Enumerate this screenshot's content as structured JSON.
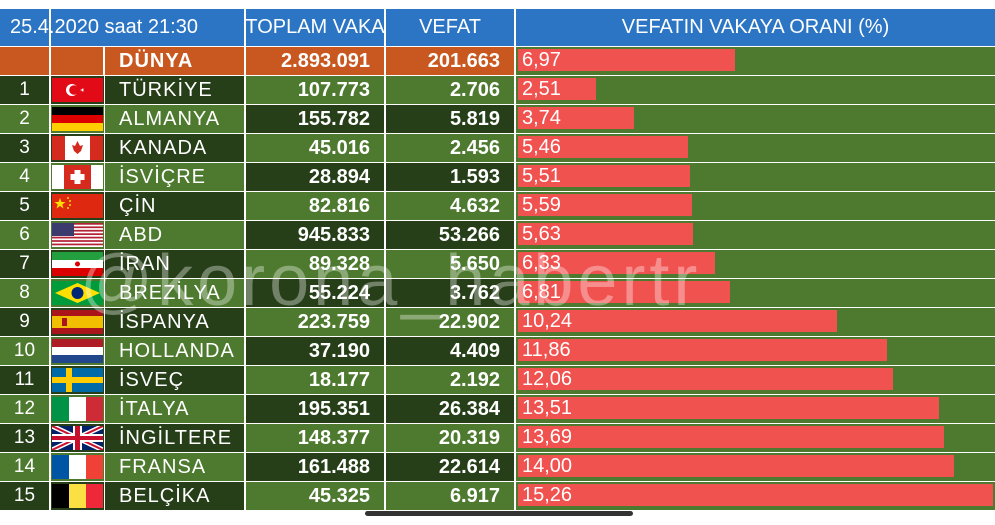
{
  "header": {
    "date_time": "25.4.2020 saat  21:30",
    "col_cases": "TOPLAM VAKA",
    "col_deaths": "VEFAT",
    "col_ratio": "VEFATIN  VAKAYA ORANI (%)"
  },
  "world": {
    "name": "DÜNYA",
    "cases": "2.893.091",
    "deaths": "201.663",
    "ratio": "6,97",
    "ratio_value": 6.97
  },
  "watermark": "@korona_habertr",
  "colors": {
    "header_blue": "#2b75c4",
    "world_orange": "#c8581f",
    "row_dark": "#263f18",
    "row_light": "#4e7a2f",
    "bar_red": "#f0524f"
  },
  "rows": [
    {
      "rank": "1",
      "flag": "turkey-flag-icon",
      "name": "TÜRKİYE",
      "cases": "107.773",
      "deaths": "2.706",
      "ratio": "2,51"
    },
    {
      "rank": "2",
      "flag": "germany-flag-icon",
      "name": "ALMANYA",
      "cases": "155.782",
      "deaths": "5.819",
      "ratio": "3,74"
    },
    {
      "rank": "3",
      "flag": "canada-flag-icon",
      "name": "KANADA",
      "cases": "45.016",
      "deaths": "2.456",
      "ratio": "5,46"
    },
    {
      "rank": "4",
      "flag": "switzerland-flag-icon",
      "name": "İSVİÇRE",
      "cases": "28.894",
      "deaths": "1.593",
      "ratio": "5,51"
    },
    {
      "rank": "5",
      "flag": "china-flag-icon",
      "name": "ÇİN",
      "cases": "82.816",
      "deaths": "4.632",
      "ratio": "5,59"
    },
    {
      "rank": "6",
      "flag": "usa-flag-icon",
      "name": "ABD",
      "cases": "945.833",
      "deaths": "53.266",
      "ratio": "5,63"
    },
    {
      "rank": "7",
      "flag": "iran-flag-icon",
      "name": "İRAN",
      "cases": "89.328",
      "deaths": "5.650",
      "ratio": "6,33"
    },
    {
      "rank": "8",
      "flag": "brazil-flag-icon",
      "name": "BREZİLYA",
      "cases": "55.224",
      "deaths": "3.762",
      "ratio": "6,81"
    },
    {
      "rank": "9",
      "flag": "spain-flag-icon",
      "name": "İSPANYA",
      "cases": "223.759",
      "deaths": "22.902",
      "ratio": "10,24"
    },
    {
      "rank": "10",
      "flag": "netherlands-flag-icon",
      "name": "HOLLANDA",
      "cases": "37.190",
      "deaths": "4.409",
      "ratio": "11,86"
    },
    {
      "rank": "11",
      "flag": "sweden-flag-icon",
      "name": "İSVEÇ",
      "cases": "18.177",
      "deaths": "2.192",
      "ratio": "12,06"
    },
    {
      "rank": "12",
      "flag": "italy-flag-icon",
      "name": "İTALYA",
      "cases": "195.351",
      "deaths": "26.384",
      "ratio": "13,51"
    },
    {
      "rank": "13",
      "flag": "uk-flag-icon",
      "name": "İNGİLTERE",
      "cases": "148.377",
      "deaths": "20.319",
      "ratio": "13,69"
    },
    {
      "rank": "14",
      "flag": "france-flag-icon",
      "name": "FRANSA",
      "cases": "161.488",
      "deaths": "22.614",
      "ratio": "14,00"
    },
    {
      "rank": "15",
      "flag": "belgium-flag-icon",
      "name": "BELÇİKA",
      "cases": "45.325",
      "deaths": "6.917",
      "ratio": "15,26"
    }
  ],
  "chart_data": {
    "type": "bar",
    "title": "VEFATIN  VAKAYA ORANI (%)",
    "categories": [
      "DÜNYA",
      "TÜRKİYE",
      "ALMANYA",
      "KANADA",
      "İSVİÇRE",
      "ÇİN",
      "ABD",
      "İRAN",
      "BREZİLYA",
      "İSPANYA",
      "HOLLANDA",
      "İSVEÇ",
      "İTALYA",
      "İNGİLTERE",
      "FRANSA",
      "BELÇİKA"
    ],
    "values": [
      6.97,
      2.51,
      3.74,
      5.46,
      5.51,
      5.59,
      5.63,
      6.33,
      6.81,
      10.24,
      11.86,
      12.06,
      13.51,
      13.69,
      14.0,
      15.26
    ],
    "orientation": "horizontal",
    "xlim": [
      0,
      15.26
    ],
    "xlabel": "",
    "ylabel": ""
  }
}
